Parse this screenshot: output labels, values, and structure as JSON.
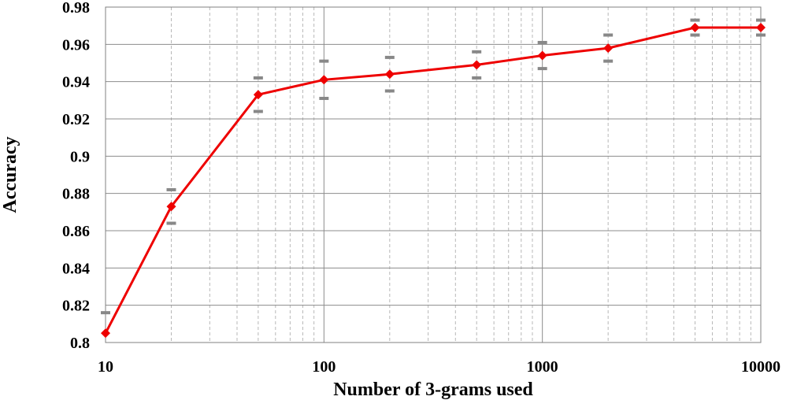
{
  "chart_data": {
    "type": "line",
    "title": "",
    "xlabel": "Number of 3-grams used",
    "ylabel": "Accuracy",
    "xscale": "log",
    "xlim": [
      10,
      10000
    ],
    "ylim": [
      0.8,
      0.98
    ],
    "x_ticks": [
      "10",
      "100",
      "1000",
      "10000"
    ],
    "y_ticks": [
      "0.8",
      "0.82",
      "0.84",
      "0.86",
      "0.88",
      "0.9",
      "0.92",
      "0.94",
      "0.96",
      "0.98"
    ],
    "grid": "major and minor",
    "series": [
      {
        "color": "#ee0000",
        "marker": "diamond",
        "x": [
          10,
          20,
          50,
          100,
          200,
          500,
          1000,
          2000,
          5000,
          10000
        ],
        "y": [
          0.805,
          0.873,
          0.933,
          0.941,
          0.944,
          0.949,
          0.954,
          0.958,
          0.969,
          0.969
        ],
        "error_upper": [
          0.816,
          0.882,
          0.942,
          0.951,
          0.953,
          0.956,
          0.961,
          0.965,
          0.973,
          0.973
        ],
        "error_lower": [
          null,
          0.864,
          0.924,
          0.931,
          0.935,
          0.942,
          0.947,
          0.951,
          0.965,
          0.965
        ]
      }
    ],
    "error_bar_color": "#888888"
  }
}
